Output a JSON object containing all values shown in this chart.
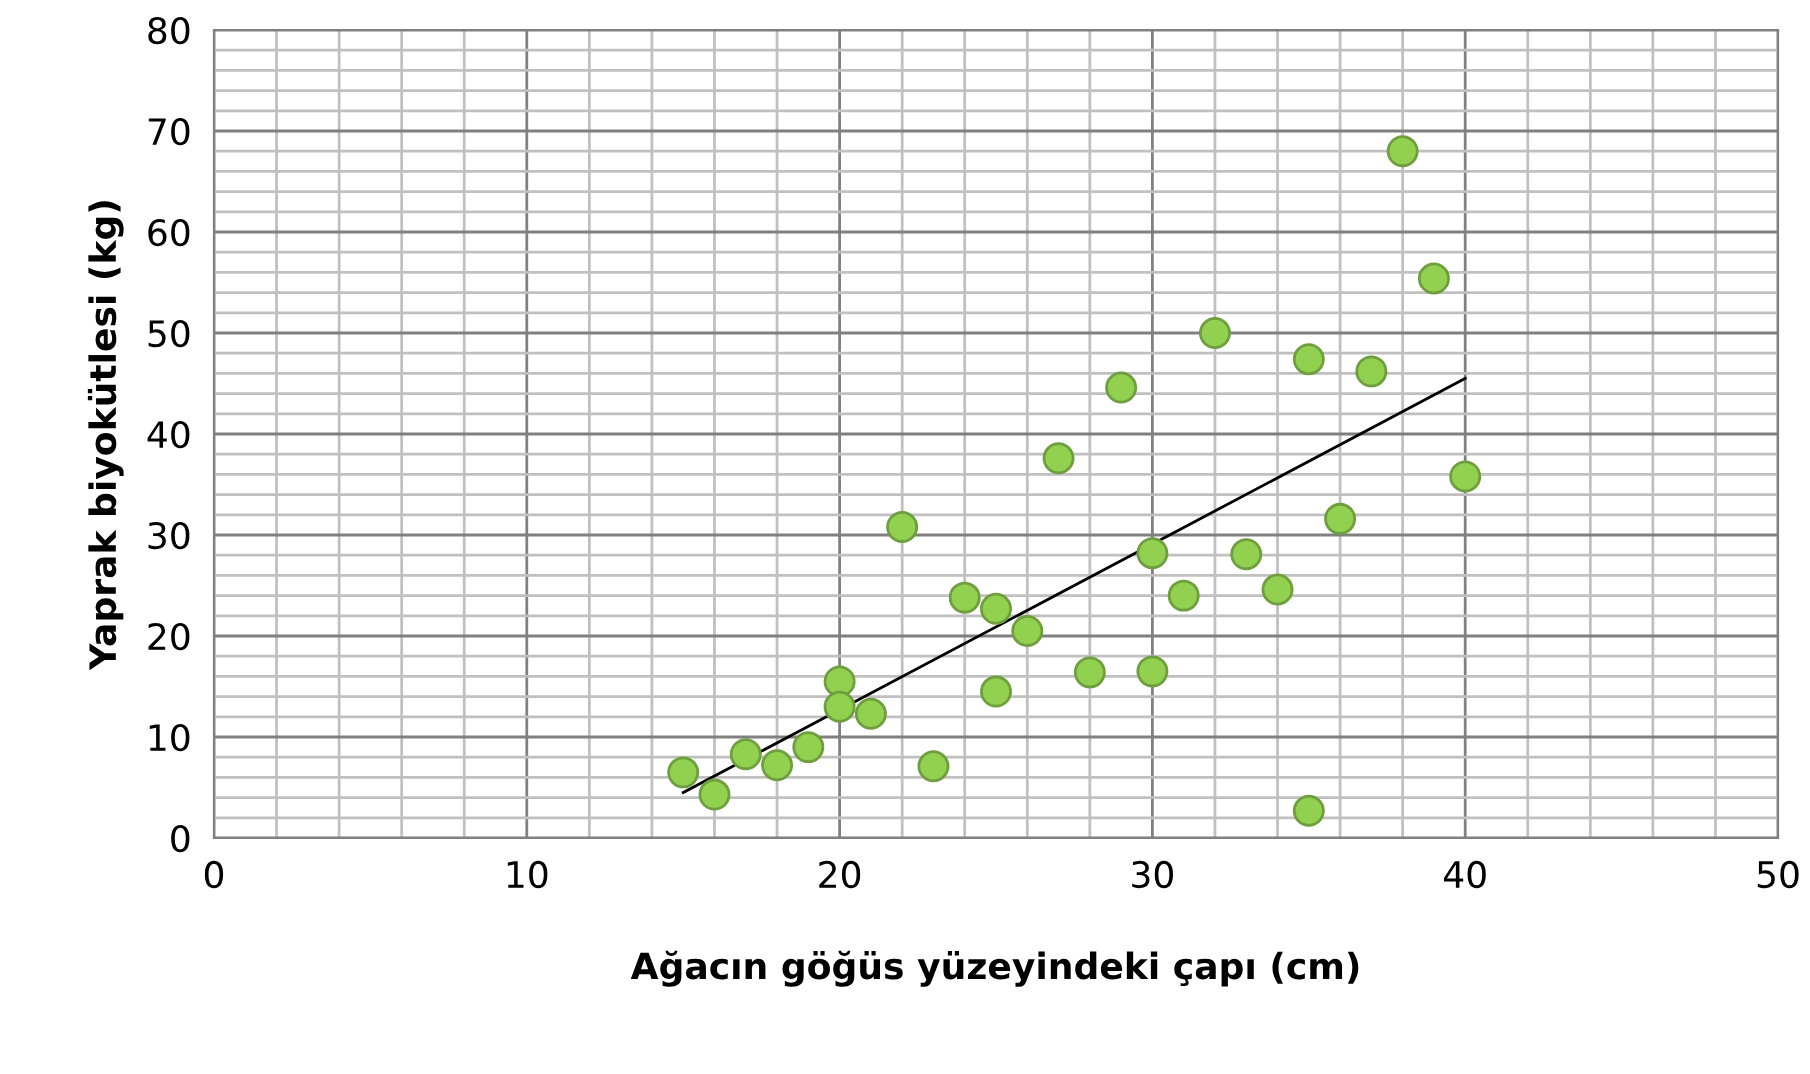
{
  "chart_data": {
    "type": "scatter",
    "xlabel": "Ağacın göğüs yüzeyindeki çapı (cm)",
    "ylabel": "Yaprak biyokütlesi (kg)",
    "xlim": [
      0,
      50
    ],
    "ylim": [
      0,
      80
    ],
    "xticks": [
      0,
      {
        "value": 2,
        "label": null
      },
      {
        "value": 4,
        "label": null
      },
      {
        "value": 6,
        "label": null
      },
      {
        "value": 8,
        "label": null
      },
      10,
      {
        "value": 12,
        "label": null
      },
      {
        "value": 14,
        "label": null
      },
      {
        "value": 16,
        "label": null
      },
      {
        "value": 18,
        "label": null
      },
      20,
      {
        "value": 22,
        "label": null
      },
      {
        "value": 24,
        "label": null
      },
      {
        "value": 26,
        "label": null
      },
      {
        "value": 28,
        "label": null
      },
      30,
      {
        "value": 32,
        "label": null
      },
      {
        "value": 34,
        "label": null
      },
      {
        "value": 36,
        "label": null
      },
      {
        "value": 38,
        "label": null
      },
      40,
      {
        "value": 42,
        "label": null
      },
      {
        "value": 44,
        "label": null
      },
      {
        "value": 46,
        "label": null
      },
      {
        "value": 48,
        "label": null
      },
      50
    ],
    "yticks": [
      0,
      {
        "value": 2,
        "label": null
      },
      {
        "value": 4,
        "label": null
      },
      {
        "value": 6,
        "label": null
      },
      {
        "value": 8,
        "label": null
      },
      10,
      {
        "value": 12,
        "label": null
      },
      {
        "value": 14,
        "label": null
      },
      {
        "value": 16,
        "label": null
      },
      {
        "value": 18,
        "label": null
      },
      20,
      {
        "value": 22,
        "label": null
      },
      {
        "value": 24,
        "label": null
      },
      {
        "value": 26,
        "label": null
      },
      {
        "value": 28,
        "label": null
      },
      30,
      {
        "value": 32,
        "label": null
      },
      {
        "value": 34,
        "label": null
      },
      {
        "value": 36,
        "label": null
      },
      {
        "value": 38,
        "label": null
      },
      40,
      {
        "value": 42,
        "label": null
      },
      {
        "value": 44,
        "label": null
      },
      {
        "value": 46,
        "label": null
      },
      {
        "value": 48,
        "label": null
      },
      50,
      {
        "value": 52,
        "label": null
      },
      {
        "value": 54,
        "label": null
      },
      {
        "value": 56,
        "label": null
      },
      {
        "value": 58,
        "label": null
      },
      60,
      {
        "value": 62,
        "label": null
      },
      {
        "value": 64,
        "label": null
      },
      {
        "value": 66,
        "label": null
      },
      {
        "value": 68,
        "label": null
      },
      70,
      {
        "value": 72,
        "label": null
      },
      {
        "value": 74,
        "label": null
      },
      {
        "value": 76,
        "label": null
      },
      {
        "value": 78,
        "label": null
      },
      80
    ],
    "grid": true,
    "marker": "circle",
    "series": [
      {
        "color": "#92d050",
        "x": [
          15,
          16,
          17,
          18,
          19,
          20,
          20,
          21,
          22,
          23,
          24,
          25,
          25,
          26,
          27,
          28,
          29,
          30,
          30,
          31,
          32,
          33,
          34,
          35,
          35,
          36,
          37,
          38,
          39,
          40
        ],
        "values": [
          6.5,
          4.3,
          8.3,
          7.2,
          9,
          15.5,
          13,
          12.3,
          30.8,
          7.1,
          23.8,
          22.7,
          14.5,
          20.5,
          37.6,
          16.4,
          44.6,
          28.2,
          16.5,
          24,
          50,
          28.1,
          24.6,
          47.4,
          2.7,
          31.6,
          46.2,
          68,
          55.4,
          35.8
        ]
      },
      {
        "type": "line",
        "color": "#000000",
        "marker": "none",
        "x": [
          15,
          40
        ],
        "values": [
          4.5,
          45.5
        ]
      }
    ]
  }
}
